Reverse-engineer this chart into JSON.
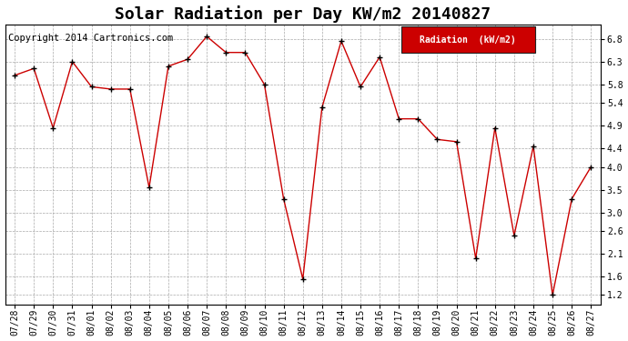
{
  "title": "Solar Radiation per Day KW/m2 20140827",
  "copyright_text": "Copyright 2014 Cartronics.com",
  "legend_label": "Radiation  (kW/m2)",
  "dates": [
    "07/28",
    "07/29",
    "07/30",
    "07/31",
    "08/01",
    "08/02",
    "08/03",
    "08/04",
    "08/05",
    "08/06",
    "08/07",
    "08/08",
    "08/09",
    "08/10",
    "08/11",
    "08/12",
    "08/13",
    "08/14",
    "08/15",
    "08/16",
    "08/17",
    "08/18",
    "08/19",
    "08/20",
    "08/21",
    "08/22",
    "08/23",
    "08/24",
    "08/25",
    "08/26",
    "08/27"
  ],
  "values": [
    6.0,
    6.15,
    4.85,
    6.3,
    5.75,
    5.7,
    5.7,
    3.55,
    6.2,
    6.35,
    6.85,
    6.5,
    6.5,
    5.8,
    3.3,
    1.55,
    5.3,
    6.75,
    5.75,
    6.4,
    5.05,
    5.05,
    4.6,
    4.55,
    2.0,
    4.85,
    2.5,
    4.45,
    1.2,
    3.3,
    4.0
  ],
  "line_color": "#cc0000",
  "marker_color": "#000000",
  "bg_color": "#ffffff",
  "plot_bg_color": "#ffffff",
  "grid_color": "#aaaaaa",
  "legend_bg": "#cc0000",
  "legend_text_color": "#ffffff",
  "ylim_min": 1.0,
  "ylim_max": 7.1,
  "yticks": [
    1.2,
    1.6,
    2.1,
    2.6,
    3.0,
    3.5,
    4.0,
    4.4,
    4.9,
    5.4,
    5.8,
    6.3,
    6.8
  ],
  "title_fontsize": 13,
  "tick_fontsize": 7,
  "copyright_fontsize": 7.5
}
